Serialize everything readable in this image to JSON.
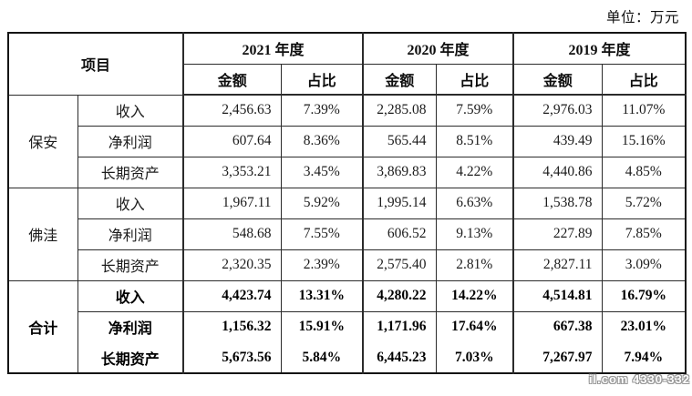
{
  "page": {
    "unit_label": "单位：万元",
    "watermark": "il.com 4330-332"
  },
  "table": {
    "header": {
      "item": "项目",
      "amount": "金额",
      "ratio": "占比",
      "years": [
        "2021 年度",
        "2020 年度",
        "2019 年度"
      ]
    },
    "groups": [
      {
        "name": "保安",
        "bold": false,
        "rows": [
          {
            "item": "收入",
            "values": [
              "2,456.63",
              "7.39%",
              "2,285.08",
              "7.59%",
              "2,976.03",
              "11.07%"
            ]
          },
          {
            "item": "净利润",
            "values": [
              "607.64",
              "8.36%",
              "565.44",
              "8.51%",
              "439.49",
              "15.16%"
            ]
          },
          {
            "item": "长期资产",
            "values": [
              "3,353.21",
              "3.45%",
              "3,869.83",
              "4.22%",
              "4,440.86",
              "4.85%"
            ]
          }
        ]
      },
      {
        "name": "佛洼",
        "bold": false,
        "rows": [
          {
            "item": "收入",
            "values": [
              "1,967.11",
              "5.92%",
              "1,995.14",
              "6.63%",
              "1,538.78",
              "5.72%"
            ]
          },
          {
            "item": "净利润",
            "values": [
              "548.68",
              "7.55%",
              "606.52",
              "9.13%",
              "227.89",
              "7.85%"
            ]
          },
          {
            "item": "长期资产",
            "values": [
              "2,320.35",
              "2.39%",
              "2,575.40",
              "2.81%",
              "2,827.11",
              "3.09%"
            ]
          }
        ]
      },
      {
        "name": "合计",
        "bold": true,
        "rows": [
          {
            "item": "收入",
            "values": [
              "4,423.74",
              "13.31%",
              "4,280.22",
              "14.22%",
              "4,514.81",
              "16.79%"
            ]
          },
          {
            "item": "净利润",
            "values": [
              "1,156.32",
              "15.91%",
              "1,171.96",
              "17.64%",
              "667.38",
              "23.01%"
            ]
          },
          {
            "item": "长期资产",
            "values": [
              "5,673.56",
              "5.84%",
              "6,445.23",
              "7.03%",
              "7,267.97",
              "7.94%"
            ]
          }
        ]
      }
    ]
  }
}
